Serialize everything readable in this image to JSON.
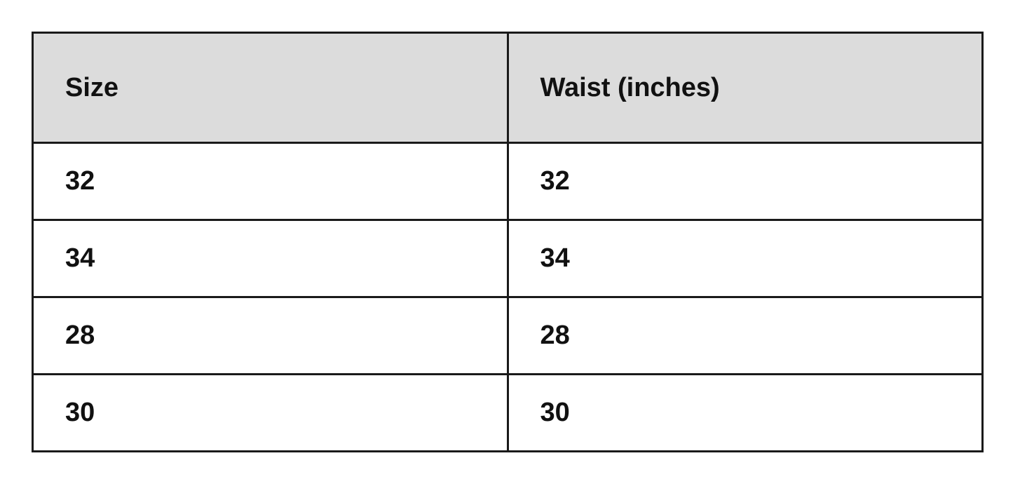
{
  "table": {
    "headers": [
      "Size",
      "Waist (inches)"
    ],
    "rows": [
      [
        "32",
        "32"
      ],
      [
        "34",
        "34"
      ],
      [
        "28",
        "28"
      ],
      [
        "30",
        "30"
      ]
    ]
  }
}
